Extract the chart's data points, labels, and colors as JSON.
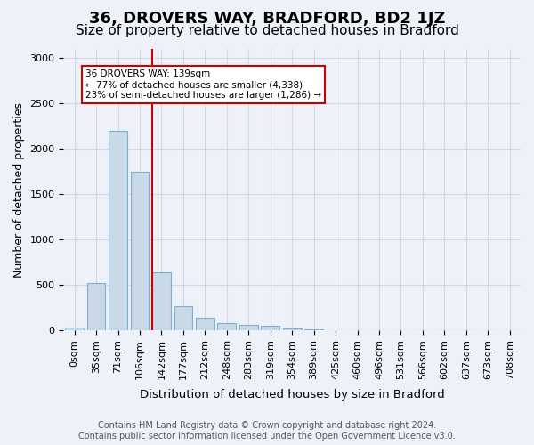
{
  "title": "36, DROVERS WAY, BRADFORD, BD2 1JZ",
  "subtitle": "Size of property relative to detached houses in Bradford",
  "xlabel": "Distribution of detached houses by size in Bradford",
  "ylabel": "Number of detached properties",
  "bar_labels": [
    "0sqm",
    "35sqm",
    "71sqm",
    "106sqm",
    "142sqm",
    "177sqm",
    "212sqm",
    "248sqm",
    "283sqm",
    "319sqm",
    "354sqm",
    "389sqm",
    "425sqm",
    "460sqm",
    "496sqm",
    "531sqm",
    "566sqm",
    "602sqm",
    "637sqm",
    "673sqm",
    "708sqm"
  ],
  "bar_values": [
    30,
    520,
    2200,
    1750,
    640,
    270,
    140,
    75,
    60,
    45,
    20,
    10,
    5,
    5,
    0,
    0,
    0,
    0,
    0,
    0,
    0
  ],
  "bar_color": "#c9d9e8",
  "bar_edgecolor": "#7bafd4",
  "bar_linewidth": 0.8,
  "vline_position": 3.57,
  "vline_color": "#cc0000",
  "annotation_text": "36 DROVERS WAY: 139sqm\n← 77% of detached houses are smaller (4,338)\n23% of semi-detached houses are larger (1,286) →",
  "annotation_box_edgecolor": "#cc0000",
  "annotation_box_facecolor": "white",
  "ylim": [
    0,
    3100
  ],
  "yticks": [
    0,
    500,
    1000,
    1500,
    2000,
    2500,
    3000
  ],
  "grid_color": "#d0d8e8",
  "background_color": "#eef2f8",
  "plot_bg_color": "#eef2f8",
  "footer_text": "Contains HM Land Registry data © Crown copyright and database right 2024.\nContains public sector information licensed under the Open Government Licence v3.0.",
  "title_fontsize": 13,
  "subtitle_fontsize": 11,
  "xlabel_fontsize": 9.5,
  "ylabel_fontsize": 9,
  "tick_fontsize": 8,
  "footer_fontsize": 7
}
